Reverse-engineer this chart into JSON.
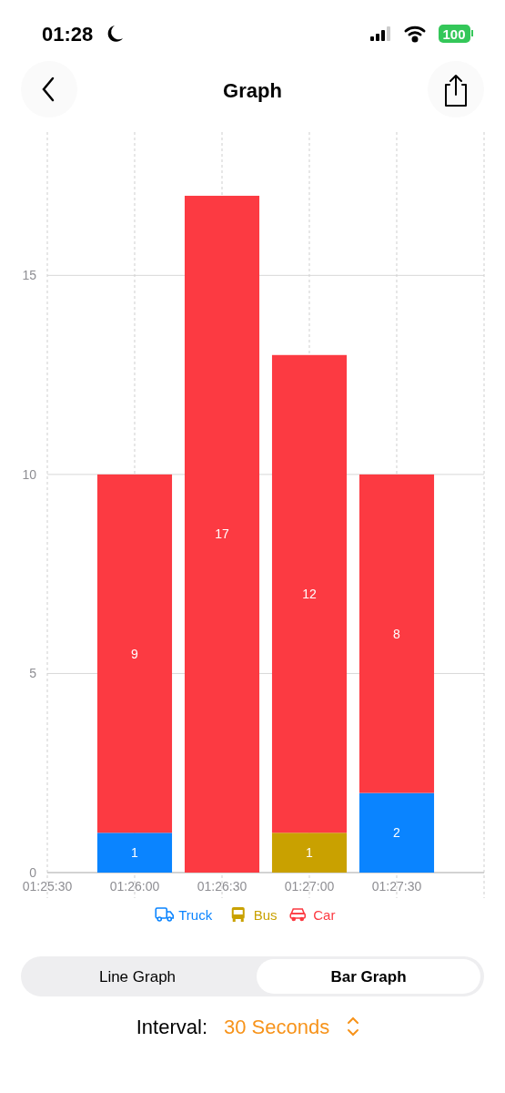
{
  "chart_data": {
    "type": "bar",
    "title": "Graph",
    "stacked": true,
    "x": [
      1.4333333,
      1.4416667,
      1.45,
      1.4583333
    ],
    "xlim": [
      1.425,
      1.4666667
    ],
    "xticks": [
      {
        "value": 1.425,
        "label": "01:25:30"
      },
      {
        "value": 1.4333333,
        "label": "01:26:00"
      },
      {
        "value": 1.4416667,
        "label": "01:26:30"
      },
      {
        "value": 1.45,
        "label": "01:27:00"
      },
      {
        "value": 1.4583333,
        "label": "01:27:30"
      },
      {
        "value": 1.4666667,
        "label": null
      }
    ],
    "ylim": [
      0,
      18.6
    ],
    "yticks": [
      0,
      5,
      10,
      15
    ],
    "series": [
      {
        "name": "Truck",
        "color": "#0a84ff",
        "values": [
          1,
          null,
          null,
          2
        ]
      },
      {
        "name": "Bus",
        "color": "#c9a100",
        "values": [
          null,
          null,
          1,
          null
        ]
      },
      {
        "name": "Car",
        "color": "#fc3a42",
        "values": [
          9,
          17,
          12,
          8
        ]
      }
    ],
    "data_labels": true,
    "grid": true,
    "legend": "bottom",
    "annotations": [
      "01:28",
      "100",
      "Line Graph",
      "Bar Graph",
      "Interval:",
      "30 Seconds"
    ]
  }
}
